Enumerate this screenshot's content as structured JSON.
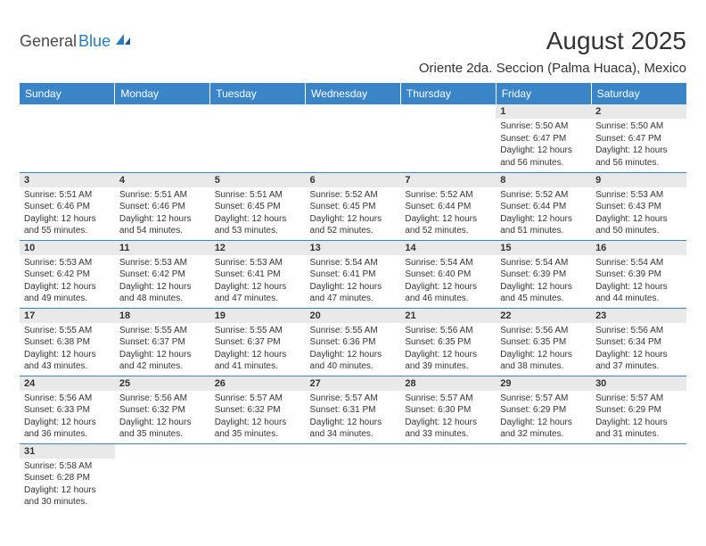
{
  "logo": {
    "part1": "General",
    "part2": "Blue"
  },
  "title": "August 2025",
  "location": "Oriente 2da. Seccion (Palma Huaca), Mexico",
  "colors": {
    "header_bg": "#3a85c8",
    "header_text": "#ffffff",
    "daynum_bg": "#e9e9e9",
    "border": "#3a85c8",
    "logo_gray": "#4a4a4a",
    "logo_blue": "#2d7bbd",
    "text": "#333333",
    "background": "#ffffff"
  },
  "weekdays": [
    "Sunday",
    "Monday",
    "Tuesday",
    "Wednesday",
    "Thursday",
    "Friday",
    "Saturday"
  ],
  "weeks": [
    [
      null,
      null,
      null,
      null,
      null,
      {
        "n": "1",
        "sr": "Sunrise: 5:50 AM",
        "ss": "Sunset: 6:47 PM",
        "d1": "Daylight: 12 hours",
        "d2": "and 56 minutes."
      },
      {
        "n": "2",
        "sr": "Sunrise: 5:50 AM",
        "ss": "Sunset: 6:47 PM",
        "d1": "Daylight: 12 hours",
        "d2": "and 56 minutes."
      }
    ],
    [
      {
        "n": "3",
        "sr": "Sunrise: 5:51 AM",
        "ss": "Sunset: 6:46 PM",
        "d1": "Daylight: 12 hours",
        "d2": "and 55 minutes."
      },
      {
        "n": "4",
        "sr": "Sunrise: 5:51 AM",
        "ss": "Sunset: 6:46 PM",
        "d1": "Daylight: 12 hours",
        "d2": "and 54 minutes."
      },
      {
        "n": "5",
        "sr": "Sunrise: 5:51 AM",
        "ss": "Sunset: 6:45 PM",
        "d1": "Daylight: 12 hours",
        "d2": "and 53 minutes."
      },
      {
        "n": "6",
        "sr": "Sunrise: 5:52 AM",
        "ss": "Sunset: 6:45 PM",
        "d1": "Daylight: 12 hours",
        "d2": "and 52 minutes."
      },
      {
        "n": "7",
        "sr": "Sunrise: 5:52 AM",
        "ss": "Sunset: 6:44 PM",
        "d1": "Daylight: 12 hours",
        "d2": "and 52 minutes."
      },
      {
        "n": "8",
        "sr": "Sunrise: 5:52 AM",
        "ss": "Sunset: 6:44 PM",
        "d1": "Daylight: 12 hours",
        "d2": "and 51 minutes."
      },
      {
        "n": "9",
        "sr": "Sunrise: 5:53 AM",
        "ss": "Sunset: 6:43 PM",
        "d1": "Daylight: 12 hours",
        "d2": "and 50 minutes."
      }
    ],
    [
      {
        "n": "10",
        "sr": "Sunrise: 5:53 AM",
        "ss": "Sunset: 6:42 PM",
        "d1": "Daylight: 12 hours",
        "d2": "and 49 minutes."
      },
      {
        "n": "11",
        "sr": "Sunrise: 5:53 AM",
        "ss": "Sunset: 6:42 PM",
        "d1": "Daylight: 12 hours",
        "d2": "and 48 minutes."
      },
      {
        "n": "12",
        "sr": "Sunrise: 5:53 AM",
        "ss": "Sunset: 6:41 PM",
        "d1": "Daylight: 12 hours",
        "d2": "and 47 minutes."
      },
      {
        "n": "13",
        "sr": "Sunrise: 5:54 AM",
        "ss": "Sunset: 6:41 PM",
        "d1": "Daylight: 12 hours",
        "d2": "and 47 minutes."
      },
      {
        "n": "14",
        "sr": "Sunrise: 5:54 AM",
        "ss": "Sunset: 6:40 PM",
        "d1": "Daylight: 12 hours",
        "d2": "and 46 minutes."
      },
      {
        "n": "15",
        "sr": "Sunrise: 5:54 AM",
        "ss": "Sunset: 6:39 PM",
        "d1": "Daylight: 12 hours",
        "d2": "and 45 minutes."
      },
      {
        "n": "16",
        "sr": "Sunrise: 5:54 AM",
        "ss": "Sunset: 6:39 PM",
        "d1": "Daylight: 12 hours",
        "d2": "and 44 minutes."
      }
    ],
    [
      {
        "n": "17",
        "sr": "Sunrise: 5:55 AM",
        "ss": "Sunset: 6:38 PM",
        "d1": "Daylight: 12 hours",
        "d2": "and 43 minutes."
      },
      {
        "n": "18",
        "sr": "Sunrise: 5:55 AM",
        "ss": "Sunset: 6:37 PM",
        "d1": "Daylight: 12 hours",
        "d2": "and 42 minutes."
      },
      {
        "n": "19",
        "sr": "Sunrise: 5:55 AM",
        "ss": "Sunset: 6:37 PM",
        "d1": "Daylight: 12 hours",
        "d2": "and 41 minutes."
      },
      {
        "n": "20",
        "sr": "Sunrise: 5:55 AM",
        "ss": "Sunset: 6:36 PM",
        "d1": "Daylight: 12 hours",
        "d2": "and 40 minutes."
      },
      {
        "n": "21",
        "sr": "Sunrise: 5:56 AM",
        "ss": "Sunset: 6:35 PM",
        "d1": "Daylight: 12 hours",
        "d2": "and 39 minutes."
      },
      {
        "n": "22",
        "sr": "Sunrise: 5:56 AM",
        "ss": "Sunset: 6:35 PM",
        "d1": "Daylight: 12 hours",
        "d2": "and 38 minutes."
      },
      {
        "n": "23",
        "sr": "Sunrise: 5:56 AM",
        "ss": "Sunset: 6:34 PM",
        "d1": "Daylight: 12 hours",
        "d2": "and 37 minutes."
      }
    ],
    [
      {
        "n": "24",
        "sr": "Sunrise: 5:56 AM",
        "ss": "Sunset: 6:33 PM",
        "d1": "Daylight: 12 hours",
        "d2": "and 36 minutes."
      },
      {
        "n": "25",
        "sr": "Sunrise: 5:56 AM",
        "ss": "Sunset: 6:32 PM",
        "d1": "Daylight: 12 hours",
        "d2": "and 35 minutes."
      },
      {
        "n": "26",
        "sr": "Sunrise: 5:57 AM",
        "ss": "Sunset: 6:32 PM",
        "d1": "Daylight: 12 hours",
        "d2": "and 35 minutes."
      },
      {
        "n": "27",
        "sr": "Sunrise: 5:57 AM",
        "ss": "Sunset: 6:31 PM",
        "d1": "Daylight: 12 hours",
        "d2": "and 34 minutes."
      },
      {
        "n": "28",
        "sr": "Sunrise: 5:57 AM",
        "ss": "Sunset: 6:30 PM",
        "d1": "Daylight: 12 hours",
        "d2": "and 33 minutes."
      },
      {
        "n": "29",
        "sr": "Sunrise: 5:57 AM",
        "ss": "Sunset: 6:29 PM",
        "d1": "Daylight: 12 hours",
        "d2": "and 32 minutes."
      },
      {
        "n": "30",
        "sr": "Sunrise: 5:57 AM",
        "ss": "Sunset: 6:29 PM",
        "d1": "Daylight: 12 hours",
        "d2": "and 31 minutes."
      }
    ],
    [
      {
        "n": "31",
        "sr": "Sunrise: 5:58 AM",
        "ss": "Sunset: 6:28 PM",
        "d1": "Daylight: 12 hours",
        "d2": "and 30 minutes."
      },
      null,
      null,
      null,
      null,
      null,
      null
    ]
  ]
}
